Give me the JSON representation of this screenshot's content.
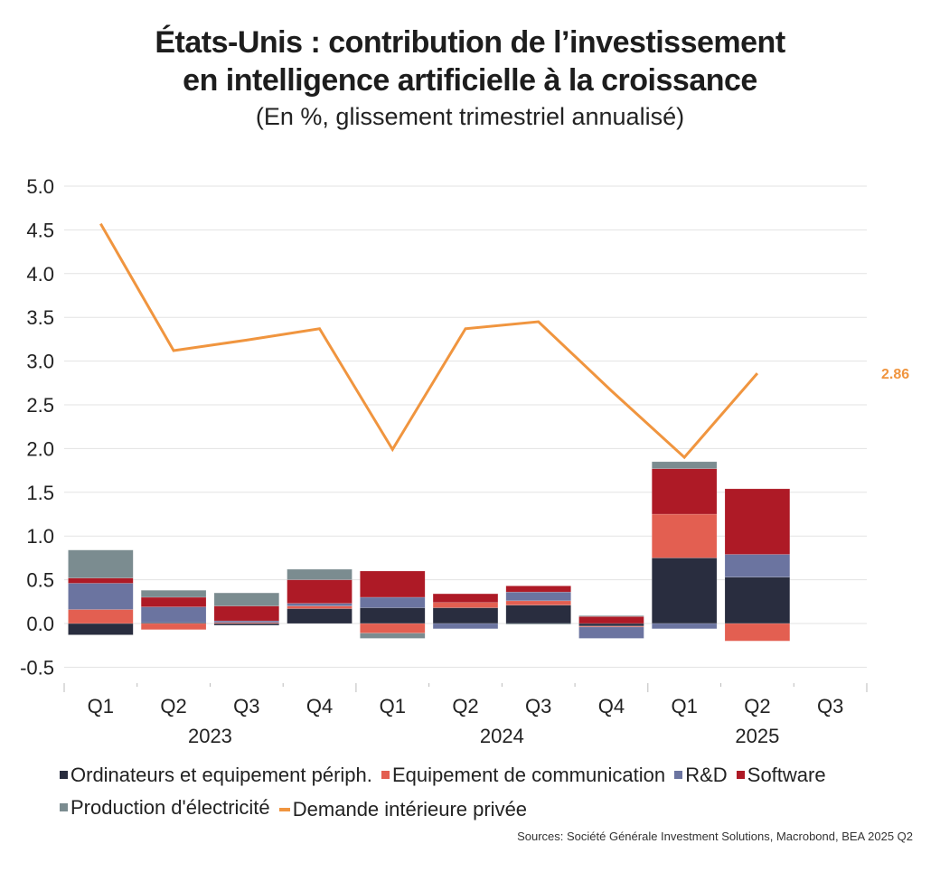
{
  "header": {
    "title_line1": "États-Unis : contribution de l’investissement",
    "title_line2": "en intelligence artificielle à la croissance",
    "subtitle": "(En %, glissement trimestriel annualisé)"
  },
  "sources": "Sources: Société Générale Investment Solutions, Macrobond, BEA 2025 Q2",
  "chart_data": {
    "type": "bar",
    "stacked": true,
    "title": "États-Unis : contribution de l’investissement en intelligence artificielle à la croissance",
    "subtitle": "(En %, glissement trimestriel annualisé)",
    "xlabel": "",
    "ylabel": "",
    "ylim": [
      -0.5,
      5.0
    ],
    "yticks": [
      "5.0",
      "4.5",
      "4.0",
      "3.5",
      "3.0",
      "2.5",
      "2.0",
      "1.5",
      "1.0",
      "0.5",
      "0.0",
      "-0.5"
    ],
    "ytick_values": [
      5.0,
      4.5,
      4.0,
      3.5,
      3.0,
      2.5,
      2.0,
      1.5,
      1.0,
      0.5,
      0.0,
      -0.5
    ],
    "grid": true,
    "legend_position": "bottom",
    "categories": [
      "Q1",
      "Q2",
      "Q3",
      "Q4",
      "Q1",
      "Q2",
      "Q3",
      "Q4",
      "Q1",
      "Q2",
      "Q3"
    ],
    "years": [
      {
        "label": "2023",
        "from": 0,
        "to": 3
      },
      {
        "label": "2024",
        "from": 4,
        "to": 7
      },
      {
        "label": "2025",
        "from": 8,
        "to": 10
      }
    ],
    "series": [
      {
        "name": "Ordinateurs et equipement périph.",
        "color": "#292d3f",
        "values": [
          -0.13,
          0.01,
          -0.02,
          0.17,
          0.18,
          0.18,
          0.21,
          -0.03,
          0.75,
          0.53,
          null
        ]
      },
      {
        "name": "Equipement de communication",
        "color": "#e35f51",
        "values": [
          0.16,
          -0.07,
          0.01,
          0.03,
          -0.11,
          0.06,
          0.05,
          -0.01,
          0.5,
          -0.2,
          null
        ]
      },
      {
        "name": "R&D",
        "color": "#6b74a0",
        "values": [
          0.3,
          0.18,
          0.02,
          0.03,
          0.12,
          -0.06,
          0.1,
          -0.13,
          -0.06,
          0.26,
          null
        ]
      },
      {
        "name": "Software",
        "color": "#ae1a26",
        "values": [
          0.06,
          0.11,
          0.17,
          0.27,
          0.3,
          0.1,
          0.07,
          0.08,
          0.52,
          0.75,
          null
        ]
      },
      {
        "name": "Production d'électricité",
        "color": "#7b8c90",
        "values": [
          0.32,
          0.08,
          0.15,
          0.12,
          -0.06,
          0.0,
          -0.01,
          0.01,
          0.08,
          0.0,
          null
        ]
      }
    ],
    "line_series": {
      "name": "Demande intérieure privée",
      "color": "#f0953f",
      "values": [
        4.57,
        3.12,
        3.24,
        3.37,
        1.99,
        3.37,
        3.45,
        2.66,
        1.9,
        2.86,
        null
      ],
      "last_value_label": "2.86"
    }
  },
  "legend": {
    "row1": [
      {
        "label": "Ordinateurs et equipement périph.",
        "color": "#292d3f",
        "kind": "box"
      },
      {
        "label": "Equipement de communication",
        "color": "#e35f51",
        "kind": "box"
      },
      {
        "label": "R&D",
        "color": "#6b74a0",
        "kind": "box"
      },
      {
        "label": "Software",
        "color": "#ae1a26",
        "kind": "box"
      }
    ],
    "row2": [
      {
        "label": "Production d'électricité",
        "color": "#7b8c90",
        "kind": "box"
      },
      {
        "label": "Demande intérieure privée",
        "color": "#f0953f",
        "kind": "line"
      }
    ]
  }
}
